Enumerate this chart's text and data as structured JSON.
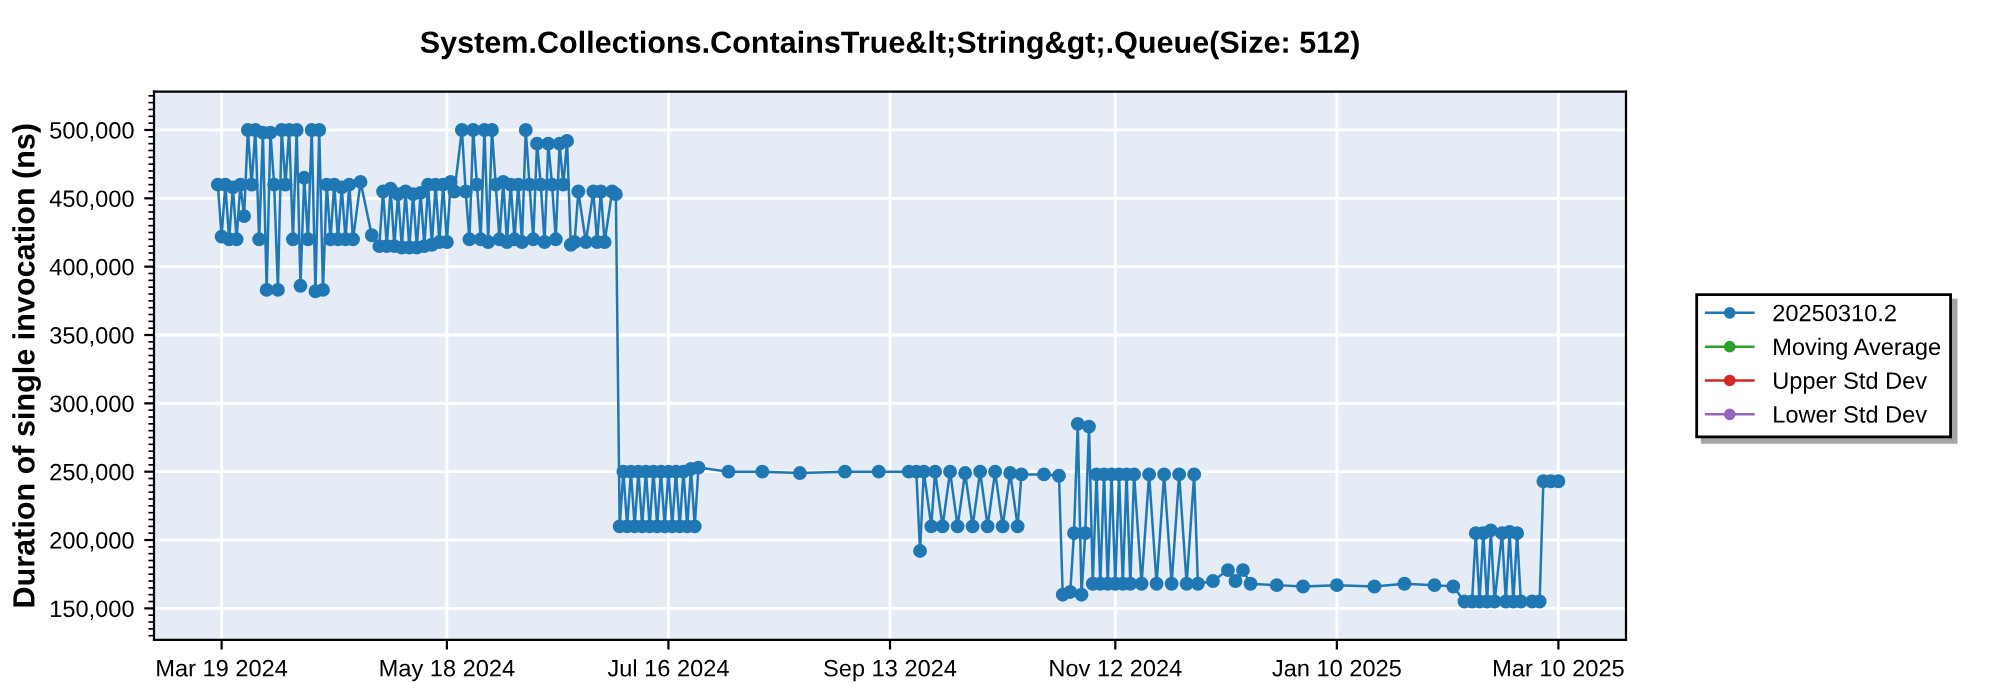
{
  "chart_data": {
    "type": "line",
    "title": "System.Collections.ContainsTrue&lt;String&gt;.Queue(Size: 512)",
    "ylabel": "Duration of single invocation (ns)",
    "xlim": [
      "2024-03-01",
      "2025-03-28"
    ],
    "ylim": [
      127000,
      528000
    ],
    "xticks": [
      {
        "value": "2024-03-19",
        "label": "Mar 19 2024"
      },
      {
        "value": "2024-05-18",
        "label": "May 18 2024"
      },
      {
        "value": "2024-07-16",
        "label": "Jul 16 2024"
      },
      {
        "value": "2024-09-13",
        "label": "Sep 13 2024"
      },
      {
        "value": "2024-11-12",
        "label": "Nov 12 2024"
      },
      {
        "value": "2025-01-10",
        "label": "Jan 10 2025"
      },
      {
        "value": "2025-03-10",
        "label": "Mar 10 2025"
      }
    ],
    "yticks": [
      {
        "value": 150000,
        "label": "150,000"
      },
      {
        "value": 200000,
        "label": "200,000"
      },
      {
        "value": 250000,
        "label": "250,000"
      },
      {
        "value": 300000,
        "label": "300,000"
      },
      {
        "value": 350000,
        "label": "350,000"
      },
      {
        "value": 400000,
        "label": "400,000"
      },
      {
        "value": 450000,
        "label": "450,000"
      },
      {
        "value": 500000,
        "label": "500,000"
      }
    ],
    "grid": true,
    "legend": "right",
    "marker": "circle",
    "line_style": "solid",
    "series": [
      {
        "name": "20250310.2",
        "color": "#1f77b4",
        "x": [
          "2024-03-18",
          "2024-03-19",
          "2024-03-20",
          "2024-03-21",
          "2024-03-22",
          "2024-03-23",
          "2024-03-24",
          "2024-03-25",
          "2024-03-26",
          "2024-03-27",
          "2024-03-28",
          "2024-03-29",
          "2024-03-30",
          "2024-03-31",
          "2024-04-01",
          "2024-04-02",
          "2024-04-03",
          "2024-04-04",
          "2024-04-05",
          "2024-04-06",
          "2024-04-07",
          "2024-04-08",
          "2024-04-09",
          "2024-04-10",
          "2024-04-11",
          "2024-04-12",
          "2024-04-13",
          "2024-04-14",
          "2024-04-15",
          "2024-04-16",
          "2024-04-17",
          "2024-04-18",
          "2024-04-19",
          "2024-04-20",
          "2024-04-21",
          "2024-04-22",
          "2024-04-23",
          "2024-04-25",
          "2024-04-28",
          "2024-04-30",
          "2024-05-01",
          "2024-05-02",
          "2024-05-03",
          "2024-05-04",
          "2024-05-05",
          "2024-05-06",
          "2024-05-07",
          "2024-05-08",
          "2024-05-09",
          "2024-05-10",
          "2024-05-11",
          "2024-05-12",
          "2024-05-13",
          "2024-05-14",
          "2024-05-15",
          "2024-05-16",
          "2024-05-17",
          "2024-05-18",
          "2024-05-19",
          "2024-05-20",
          "2024-05-22",
          "2024-05-23",
          "2024-05-24",
          "2024-05-25",
          "2024-05-26",
          "2024-05-27",
          "2024-05-28",
          "2024-05-29",
          "2024-05-30",
          "2024-05-31",
          "2024-06-01",
          "2024-06-02",
          "2024-06-03",
          "2024-06-04",
          "2024-06-05",
          "2024-06-06",
          "2024-06-07",
          "2024-06-08",
          "2024-06-09",
          "2024-06-10",
          "2024-06-11",
          "2024-06-12",
          "2024-06-13",
          "2024-06-14",
          "2024-06-15",
          "2024-06-16",
          "2024-06-17",
          "2024-06-18",
          "2024-06-19",
          "2024-06-20",
          "2024-06-21",
          "2024-06-22",
          "2024-06-24",
          "2024-06-26",
          "2024-06-27",
          "2024-06-28",
          "2024-06-29",
          "2024-07-01",
          "2024-07-02",
          "2024-07-03",
          "2024-07-04",
          "2024-07-05",
          "2024-07-06",
          "2024-07-07",
          "2024-07-08",
          "2024-07-09",
          "2024-07-10",
          "2024-07-11",
          "2024-07-12",
          "2024-07-13",
          "2024-07-14",
          "2024-07-15",
          "2024-07-16",
          "2024-07-17",
          "2024-07-18",
          "2024-07-19",
          "2024-07-20",
          "2024-07-21",
          "2024-07-22",
          "2024-07-23",
          "2024-07-24",
          "2024-08-01",
          "2024-08-10",
          "2024-08-20",
          "2024-09-01",
          "2024-09-10",
          "2024-09-18",
          "2024-09-20",
          "2024-09-21",
          "2024-09-22",
          "2024-09-24",
          "2024-09-25",
          "2024-09-27",
          "2024-09-29",
          "2024-10-01",
          "2024-10-03",
          "2024-10-05",
          "2024-10-07",
          "2024-10-09",
          "2024-10-11",
          "2024-10-13",
          "2024-10-15",
          "2024-10-17",
          "2024-10-18",
          "2024-10-24",
          "2024-10-28",
          "2024-10-29",
          "2024-10-31",
          "2024-11-01",
          "2024-11-02",
          "2024-11-03",
          "2024-11-04",
          "2024-11-05",
          "2024-11-06",
          "2024-11-07",
          "2024-11-08",
          "2024-11-09",
          "2024-11-10",
          "2024-11-11",
          "2024-11-12",
          "2024-11-13",
          "2024-11-14",
          "2024-11-15",
          "2024-11-16",
          "2024-11-17",
          "2024-11-19",
          "2024-11-21",
          "2024-11-23",
          "2024-11-25",
          "2024-11-27",
          "2024-11-29",
          "2024-12-01",
          "2024-12-03",
          "2024-12-04",
          "2024-12-08",
          "2024-12-12",
          "2024-12-14",
          "2024-12-16",
          "2024-12-18",
          "2024-12-25",
          "2025-01-01",
          "2025-01-10",
          "2025-01-20",
          "2025-01-28",
          "2025-02-05",
          "2025-02-10",
          "2025-02-13",
          "2025-02-15",
          "2025-02-16",
          "2025-02-17",
          "2025-02-18",
          "2025-02-19",
          "2025-02-20",
          "2025-02-21",
          "2025-02-23",
          "2025-02-24",
          "2025-02-25",
          "2025-02-26",
          "2025-02-27",
          "2025-02-28",
          "2025-03-03",
          "2025-03-05",
          "2025-03-06",
          "2025-03-08",
          "2025-03-10"
        ],
        "values": [
          460000,
          422000,
          460000,
          420000,
          458000,
          420000,
          460000,
          437000,
          500000,
          460000,
          500000,
          420000,
          498000,
          383000,
          498000,
          460000,
          383000,
          500000,
          460000,
          500000,
          420000,
          500000,
          386000,
          465000,
          420000,
          500000,
          382000,
          500000,
          383000,
          460000,
          420000,
          460000,
          420000,
          458000,
          420000,
          460000,
          420000,
          462000,
          423000,
          415000,
          455000,
          415000,
          457000,
          415000,
          453000,
          414000,
          455000,
          414000,
          453000,
          414000,
          454000,
          415000,
          460000,
          416000,
          460000,
          418000,
          460000,
          418000,
          462000,
          455000,
          500000,
          455000,
          420000,
          500000,
          460000,
          420000,
          500000,
          418000,
          500000,
          460000,
          420000,
          462000,
          418000,
          460000,
          420000,
          460000,
          418000,
          500000,
          460000,
          420000,
          490000,
          460000,
          418000,
          490000,
          460000,
          420000,
          490000,
          460000,
          492000,
          416000,
          418000,
          455000,
          418000,
          455000,
          418000,
          455000,
          418000,
          455000,
          453000,
          210000,
          250000,
          210000,
          250000,
          210000,
          250000,
          210000,
          250000,
          210000,
          250000,
          210000,
          250000,
          210000,
          250000,
          210000,
          250000,
          210000,
          250000,
          210000,
          252000,
          210000,
          253000,
          250000,
          250000,
          249000,
          250000,
          250000,
          250000,
          250000,
          192000,
          250000,
          210000,
          250000,
          210000,
          250000,
          210000,
          249000,
          210000,
          250000,
          210000,
          250000,
          210000,
          249000,
          210000,
          248000,
          248000,
          247000,
          160000,
          162000,
          205000,
          285000,
          160000,
          205000,
          283000,
          168000,
          248000,
          168000,
          248000,
          168000,
          248000,
          168000,
          248000,
          168000,
          248000,
          168000,
          248000,
          168000,
          248000,
          168000,
          248000,
          168000,
          248000,
          168000,
          248000,
          168000,
          170000,
          178000,
          170000,
          178000,
          168000,
          167000,
          166000,
          167000,
          166000,
          168000,
          167000,
          166000,
          155000,
          155000,
          205000,
          155000,
          205000,
          155000,
          207000,
          155000,
          205000,
          155000,
          206000,
          155000,
          205000,
          155000,
          155000,
          155000,
          243000,
          243000,
          243000
        ]
      },
      {
        "name": "Moving Average",
        "color": "#2ca02c",
        "values": [
          null
        ]
      },
      {
        "name": "Upper Std Dev",
        "color": "#d62728",
        "values": [
          null
        ]
      },
      {
        "name": "Lower Std Dev",
        "color": "#9467bd",
        "values": [
          null
        ]
      }
    ]
  }
}
